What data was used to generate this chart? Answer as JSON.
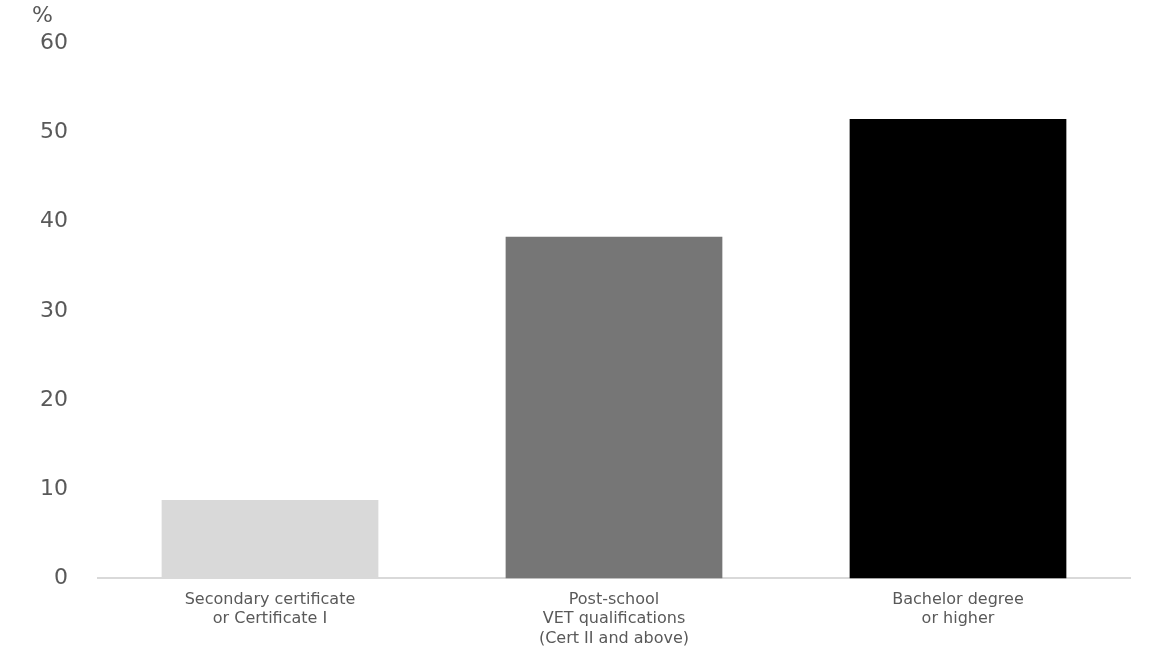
{
  "chart_data": {
    "type": "bar",
    "ylabel": "%",
    "categories": [
      "Secondary certificate\nor Certificate I",
      "Post-school\nVET qualifications\n(Cert II and above)",
      "Bachelor degree\nor higher"
    ],
    "values": [
      8.8,
      38.3,
      51.5
    ],
    "colors": [
      "#d9d9d9",
      "#767676",
      "#000000"
    ],
    "ylim": [
      0,
      60
    ],
    "yticks": [
      0,
      10,
      20,
      30,
      40,
      50,
      60
    ],
    "grid": false,
    "legend": false
  }
}
